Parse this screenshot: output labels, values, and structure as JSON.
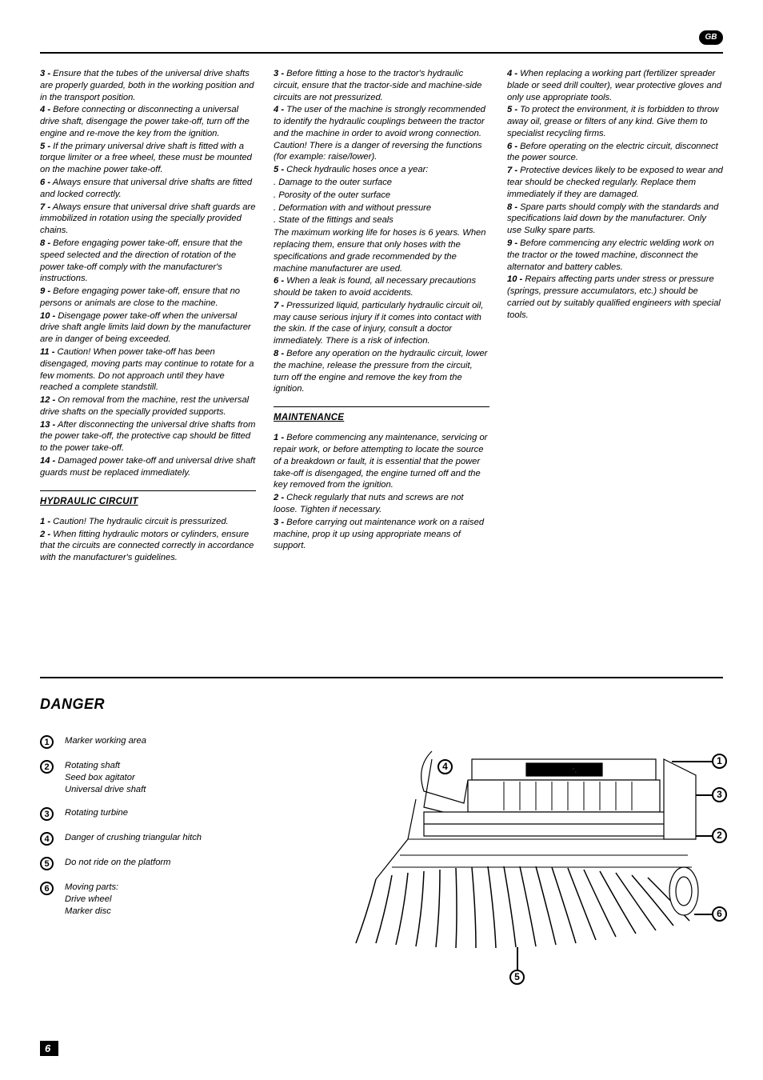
{
  "lang_badge": "GB",
  "page_number": "6",
  "col1": {
    "items": [
      {
        "n": "3 -",
        "t": "Ensure that the tubes of the universal drive shafts are properly guarded, both in the working position and in the transport position."
      },
      {
        "n": "4 -",
        "t": "Before connecting or disconnecting a universal drive shaft, disengage the power take-off, turn off the engine and re-move the key from the ignition."
      },
      {
        "n": "5 -",
        "t": "If the primary universal drive shaft is fitted with a torque limiter or a free wheel, these must be mounted on the machine power take-off."
      },
      {
        "n": "6 -",
        "t": "Always ensure that universal drive shafts are fitted and locked correctly."
      },
      {
        "n": "7 -",
        "t": "Always ensure that universal drive shaft guards are immobilized in rotation using the specially provided chains."
      },
      {
        "n": "8 -",
        "t": "Before engaging power take-off, ensure that the speed selected and the direction of rotation of the power take-off comply with the manufacturer's instructions."
      },
      {
        "n": "9 -",
        "t": "Before engaging power take-off, ensure that no persons or animals are close to the machine."
      },
      {
        "n": "10 -",
        "t": "Disengage power take-off when the universal drive shaft angle limits laid down by the manufacturer are in danger of being exceeded."
      },
      {
        "n": "11 -",
        "t": "Caution!  When power take-off has been disengaged, moving parts may continue to rotate for a few moments.  Do not approach until they have reached a complete standstill."
      },
      {
        "n": "12 -",
        "t": "On removal from the machine, rest the universal drive shafts on the specially provided supports."
      },
      {
        "n": "13 -",
        "t": "After disconnecting the universal drive shafts from the power take-off, the protective cap should be fitted to the power take-off."
      },
      {
        "n": "14 -",
        "t": "Damaged power take-off and universal drive shaft guards must be replaced immediately."
      }
    ],
    "section_head": "HYDRAULIC CIRCUIT",
    "section_items": [
      {
        "n": "1 -",
        "t": "Caution!  The hydraulic circuit is pressurized."
      },
      {
        "n": "2 -",
        "t": "When fitting hydraulic motors or cylinders, ensure that the circuits are connected correctly in accordance with the manufacturer's guidelines."
      }
    ]
  },
  "col2": {
    "items_a": [
      {
        "n": "3 -",
        "t": "Before fitting a hose to the tractor's hydraulic circuit, ensure that the tractor-side and machine-side circuits are not pressurized."
      },
      {
        "n": "4 -",
        "t": "The user of the machine is strongly recommended to identify the hydraulic couplings between the tractor and the machine in order to avoid wrong connection.  Caution!  There is a danger of reversing the functions (for example: raise/lower)."
      },
      {
        "n": "5 -",
        "t": "Check hydraulic hoses once a year:"
      }
    ],
    "bullets": [
      ". Damage to the outer surface",
      ". Porosity of the outer surface",
      ". Deformation with and without pressure",
      ". State of the fittings and seals"
    ],
    "extra": "The maximum working life for hoses is 6 years.  When replacing them, ensure that only hoses with the specifications and grade recommended by the machine manufacturer are used.",
    "items_b": [
      {
        "n": "6 -",
        "t": "When a leak is found, all necessary precautions should be taken to avoid accidents."
      },
      {
        "n": "7 -",
        "t": "Pressurized liquid, particularly hydraulic circuit oil, may cause serious injury if it comes into contact with the skin.  If the case of injury, consult a doctor immediately.  There is a risk of infection."
      },
      {
        "n": "8 -",
        "t": "Before any operation on the hydraulic circuit, lower the machine, release the pressure from the circuit, turn off the engine and remove the key from the ignition."
      }
    ],
    "section_head": "MAINTENANCE",
    "section_items": [
      {
        "n": "1 -",
        "t": "Before commencing any maintenance, servicing or repair work, or before attempting to locate the source of a breakdown or fault, it is essential that the power take-off is disengaged, the engine turned off and the key removed from the ignition."
      },
      {
        "n": "2 -",
        "t": "Check regularly that nuts and screws are not loose.  Tighten if necessary."
      },
      {
        "n": "3 -",
        "t": "Before carrying out maintenance work on a raised machine, prop it up using appropriate means of support."
      }
    ]
  },
  "col3": {
    "items": [
      {
        "n": "4 -",
        "t": "When replacing a working part (fertilizer spreader blade or seed drill coulter), wear protective gloves and only use appropriate tools."
      },
      {
        "n": "5 -",
        "t": "To protect the environment, it is forbidden to throw away oil, grease or filters of any kind.  Give them to specialist recycling firms."
      },
      {
        "n": "6 -",
        "t": "Before operating on the electric circuit, disconnect the power source."
      },
      {
        "n": "7 -",
        "t": "Protective devices likely to be exposed to wear and tear should be checked regularly.  Replace them immediately if they are damaged."
      },
      {
        "n": "8 -",
        "t": "Spare parts should comply with the standards and specifications laid down by the manufacturer.  Only use Sulky spare parts."
      },
      {
        "n": "9 -",
        "t": "Before commencing any electric welding work on the tractor or the towed machine, disconnect the alternator and battery cables."
      },
      {
        "n": "10 -",
        "t": "Repairs affecting parts under stress or pressure (springs, pressure accumulators, etc.) should be carried out by suitably qualified engineers with special tools."
      }
    ]
  },
  "danger": {
    "head": "DANGER",
    "items": [
      {
        "n": "1",
        "lines": [
          "Marker working area"
        ]
      },
      {
        "n": "2",
        "lines": [
          "Rotating shaft",
          "Seed box agitator",
          "Universal drive shaft"
        ]
      },
      {
        "n": "3",
        "lines": [
          "Rotating turbine"
        ]
      },
      {
        "n": "4",
        "lines": [
          "Danger of crushing triangular hitch"
        ]
      },
      {
        "n": "5",
        "lines": [
          "Do not ride on the platform"
        ]
      },
      {
        "n": "6",
        "lines": [
          "Moving parts:",
          "Drive wheel",
          "Marker disc"
        ]
      }
    ]
  },
  "illus_label": "REGULINE"
}
